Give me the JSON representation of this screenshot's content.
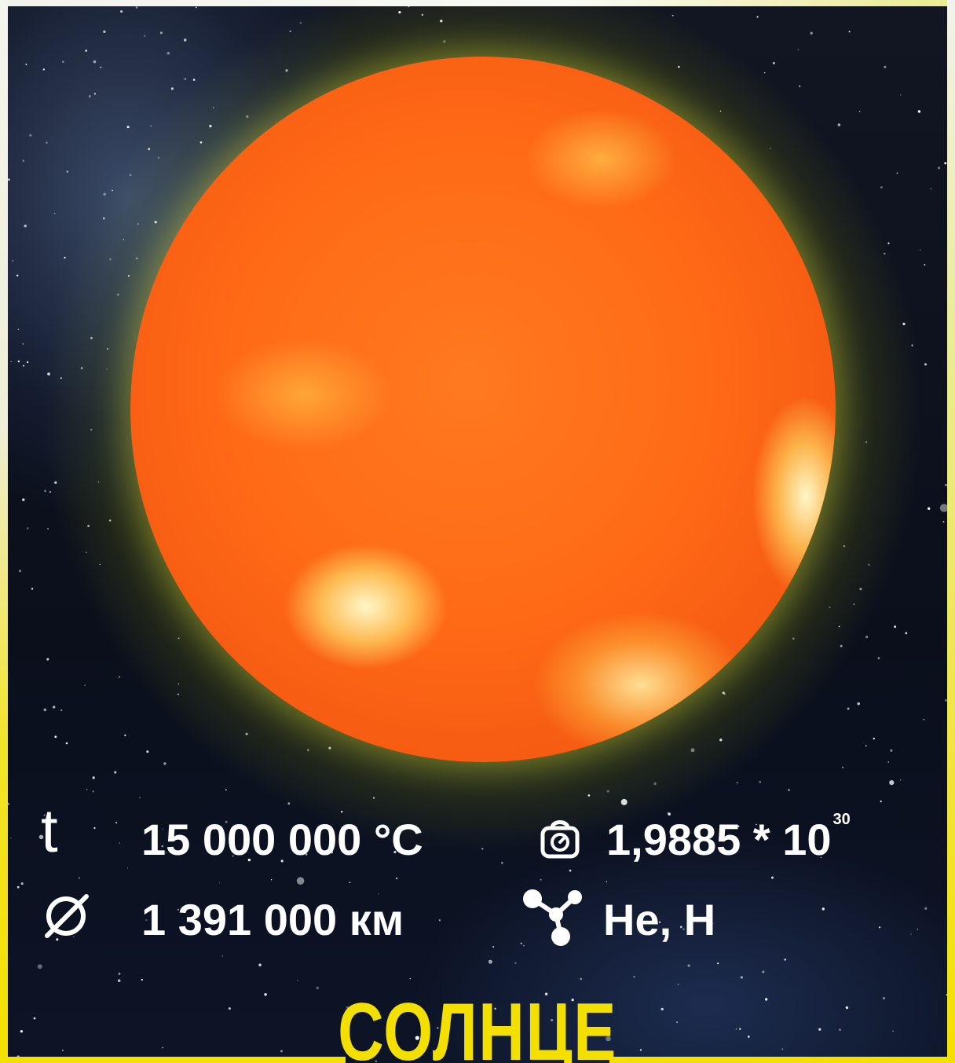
{
  "title": "СОЛНЦЕ",
  "stats": {
    "temperature": {
      "symbol": "t",
      "value": "15 000 000 °C",
      "icon": "thermometer-t-icon"
    },
    "diameter": {
      "symbol": "∅",
      "value": "1 391 000 км",
      "icon": "diameter-icon"
    },
    "mass": {
      "value": "1,9885 * 10",
      "exponent": "30",
      "icon": "weight-icon"
    },
    "composition": {
      "value": "He, H",
      "icon": "molecule-icon"
    }
  },
  "colors": {
    "title": "#f4e000",
    "frame": "#f4e000",
    "text": "#ffffff",
    "sun_core": "#ff6a16",
    "glow": "#c8d228"
  }
}
